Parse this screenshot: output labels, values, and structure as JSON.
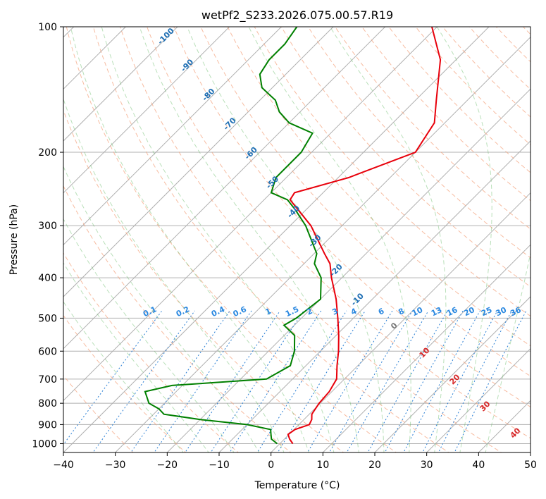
{
  "chart_data": {
    "type": "skew-t",
    "title": "wetPf2_S233.2026.075.00.57.R19",
    "xlabel": "Temperature (°C)",
    "ylabel": "Pressure (hPa)",
    "xlim": [
      -40,
      50
    ],
    "ylim": [
      1050,
      100
    ],
    "y_scale": "log",
    "grid": true,
    "x_ticks": [
      "−40",
      "−30",
      "−20",
      "−10",
      "0",
      "10",
      "20",
      "30",
      "40",
      "50"
    ],
    "y_ticks": [
      100,
      200,
      300,
      400,
      500,
      600,
      700,
      800,
      900,
      1000
    ],
    "series": [
      {
        "color": "#e8000b",
        "points": [
          [
            1000,
            2.5
          ],
          [
            975,
            1.0
          ],
          [
            950,
            -0.2
          ],
          [
            925,
            0.2
          ],
          [
            900,
            2.0
          ],
          [
            875,
            1.5
          ],
          [
            850,
            0.5
          ],
          [
            800,
            -0.2
          ],
          [
            750,
            -0.5
          ],
          [
            700,
            -1.5
          ],
          [
            650,
            -4
          ],
          [
            600,
            -6.5
          ],
          [
            550,
            -9.5
          ],
          [
            500,
            -13
          ],
          [
            450,
            -17
          ],
          [
            400,
            -22
          ],
          [
            370,
            -25
          ],
          [
            350,
            -28
          ],
          [
            300,
            -36
          ],
          [
            260,
            -45
          ],
          [
            250,
            -45.5
          ],
          [
            230,
            -38
          ],
          [
            200,
            -30
          ],
          [
            170,
            -32
          ],
          [
            150,
            -36
          ],
          [
            120,
            -43
          ],
          [
            100,
            -51
          ]
        ]
      },
      {
        "color": "#008000",
        "points": [
          [
            1000,
            -0.5
          ],
          [
            975,
            -2.5
          ],
          [
            950,
            -3.5
          ],
          [
            925,
            -4.5
          ],
          [
            900,
            -10
          ],
          [
            875,
            -20
          ],
          [
            850,
            -28
          ],
          [
            825,
            -30
          ],
          [
            800,
            -33
          ],
          [
            750,
            -36
          ],
          [
            725,
            -32
          ],
          [
            700,
            -15
          ],
          [
            650,
            -13
          ],
          [
            600,
            -15
          ],
          [
            550,
            -18
          ],
          [
            520,
            -22
          ],
          [
            500,
            -21
          ],
          [
            450,
            -20
          ],
          [
            400,
            -24
          ],
          [
            370,
            -28
          ],
          [
            350,
            -29.5
          ],
          [
            300,
            -37
          ],
          [
            275,
            -42
          ],
          [
            260,
            -45.5
          ],
          [
            250,
            -50
          ],
          [
            230,
            -52
          ],
          [
            200,
            -52
          ],
          [
            180,
            -53.5
          ],
          [
            170,
            -60
          ],
          [
            160,
            -64
          ],
          [
            150,
            -67
          ],
          [
            140,
            -72
          ],
          [
            130,
            -75
          ],
          [
            120,
            -76
          ],
          [
            110,
            -76
          ],
          [
            100,
            -77
          ]
        ]
      }
    ],
    "overlay_labels": {
      "dry_adiabats": [
        "-100",
        "-90",
        "-80",
        "-70",
        "-60",
        "-50",
        "-40",
        "-30",
        "-20",
        "-10"
      ],
      "mixing_ratio": [
        "0.1",
        "0.2",
        "0.4",
        "0.6",
        "1",
        "1.5",
        "2",
        "3",
        "4",
        "6",
        "8",
        "10",
        "13",
        "16",
        "20",
        "25",
        "30",
        "36"
      ],
      "moist_adiabats": [
        "0",
        "10",
        "20",
        "30",
        "40"
      ]
    }
  }
}
